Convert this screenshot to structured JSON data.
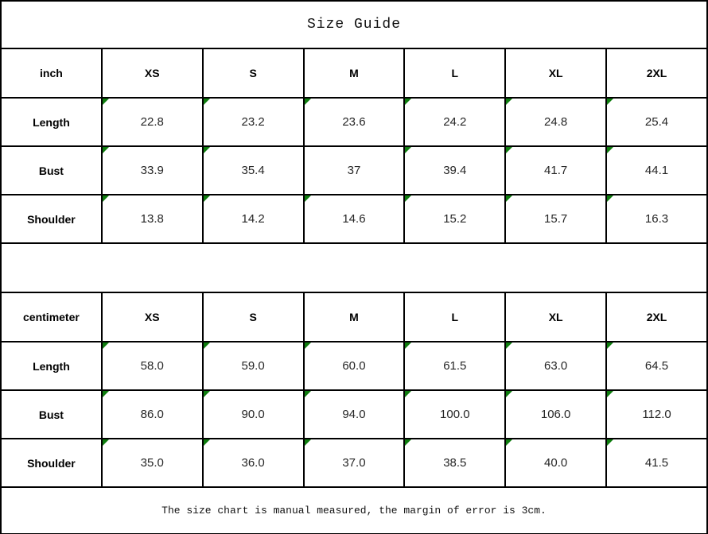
{
  "title": "Size Guide",
  "footnote": "The size chart is manual measured, the margin of error is 3cm.",
  "colors": {
    "grid_line": "#000000",
    "background": "#ffffff",
    "stored_as_text_flag_green": "#0f7d0f",
    "value_text": "#262626",
    "header_text": "#000000"
  },
  "icons": {
    "cell_corner_flag": "stored-as-text-flag-icon"
  },
  "chart_data": [
    {
      "type": "table",
      "unit": "inch",
      "columns": [
        "XS",
        "S",
        "M",
        "L",
        "XL",
        "2XL"
      ],
      "rows": [
        {
          "label": "Length",
          "values": [
            "22.8",
            "23.2",
            "23.6",
            "24.2",
            "24.8",
            "25.4"
          ],
          "flags": [
            true,
            true,
            true,
            true,
            true,
            true
          ]
        },
        {
          "label": "Bust",
          "values": [
            "33.9",
            "35.4",
            "37",
            "39.4",
            "41.7",
            "44.1"
          ],
          "flags": [
            true,
            true,
            false,
            true,
            true,
            true
          ]
        },
        {
          "label": "Shoulder",
          "values": [
            "13.8",
            "14.2",
            "14.6",
            "15.2",
            "15.7",
            "16.3"
          ],
          "flags": [
            true,
            true,
            true,
            true,
            true,
            true
          ]
        }
      ]
    },
    {
      "type": "table",
      "unit": "centimeter",
      "columns": [
        "XS",
        "S",
        "M",
        "L",
        "XL",
        "2XL"
      ],
      "rows": [
        {
          "label": "Length",
          "values": [
            "58.0",
            "59.0",
            "60.0",
            "61.5",
            "63.0",
            "64.5"
          ],
          "flags": [
            true,
            true,
            true,
            true,
            true,
            true
          ]
        },
        {
          "label": "Bust",
          "values": [
            "86.0",
            "90.0",
            "94.0",
            "100.0",
            "106.0",
            "112.0"
          ],
          "flags": [
            true,
            true,
            true,
            true,
            true,
            true
          ]
        },
        {
          "label": "Shoulder",
          "values": [
            "35.0",
            "36.0",
            "37.0",
            "38.5",
            "40.0",
            "41.5"
          ],
          "flags": [
            true,
            true,
            true,
            true,
            true,
            true
          ]
        }
      ]
    }
  ]
}
